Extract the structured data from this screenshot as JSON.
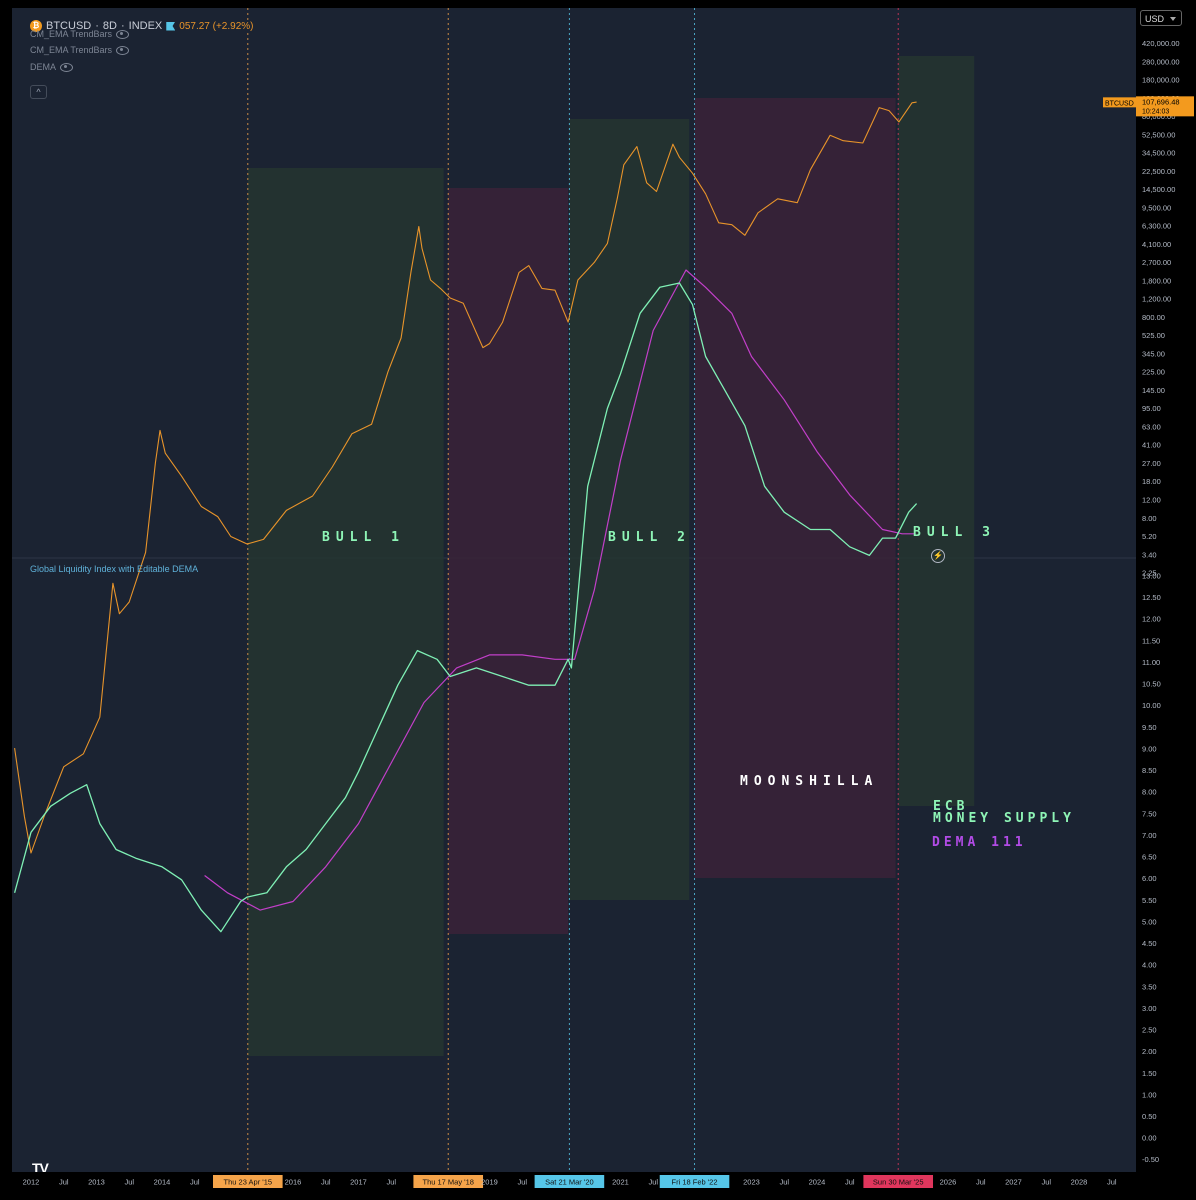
{
  "header": {
    "symbol": "BTCUSD",
    "interval": "8D",
    "exchange": "INDEX",
    "change_text": "057.27 (+2.92%)"
  },
  "indicators": [
    {
      "name": "CM_EMA TrendBars"
    },
    {
      "name": "CM_EMA TrendBars"
    },
    {
      "name": "DEMA"
    }
  ],
  "lower_pane_title": "Global Liquidity Index with Editable DEMA",
  "currency": "USD",
  "price_tag": {
    "symbol": "BTCUSD",
    "price": "107,696.48",
    "countdown": "10:24:03"
  },
  "colors": {
    "background": "#1b2332",
    "btc_line": "#e8942a",
    "liquidity_line": "#7ff0b5",
    "dema_line": "#c23fc9",
    "bull_zone": "#243530",
    "bear_zone": "#3a2238",
    "annotation_green": "#8ef5b6",
    "annotation_purple": "#b24be6"
  },
  "annotations": {
    "bull1": "BULL 1",
    "bull2": "BULL 2",
    "bull3": "BULL 3",
    "moonshilla": "MOONSHILLA",
    "ecb": "ECB",
    "money_supply": "MONEY SUPPLY",
    "dema": "DEMA 111"
  },
  "chart_data": [
    {
      "type": "line",
      "title": "BTCUSD · 8D · INDEX",
      "scale": "log",
      "yticks": [
        "420,000.00",
        "280,000.00",
        "180,000.00",
        "120,000.00",
        "80,000.00",
        "52,500.00",
        "34,500.00",
        "22,500.00",
        "14,500.00",
        "9,500.00",
        "6,300.00",
        "4,100.00",
        "2,700.00",
        "1,800.00",
        "1,200.00",
        "800.00",
        "525.00",
        "345.00",
        "225.00",
        "145.00",
        "95.00",
        "63.00",
        "41.00",
        "27.00",
        "18.00",
        "12.00",
        "8.00",
        "5.20",
        "3.40",
        "2.25"
      ],
      "series": [
        {
          "name": "BTCUSD",
          "x": [
            2011.75,
            2011.9,
            2012.0,
            2012.2,
            2012.5,
            2012.8,
            2013.05,
            2013.25,
            2013.35,
            2013.5,
            2013.75,
            2013.9,
            2013.97,
            2014.05,
            2014.3,
            2014.6,
            2014.85,
            2015.05,
            2015.3,
            2015.55,
            2015.9,
            2016.3,
            2016.6,
            2016.9,
            2017.2,
            2017.45,
            2017.65,
            2017.8,
            2017.92,
            2017.97,
            2018.1,
            2018.25,
            2018.4,
            2018.6,
            2018.9,
            2019.0,
            2019.2,
            2019.45,
            2019.6,
            2019.8,
            2020.0,
            2020.2,
            2020.35,
            2020.6,
            2020.8,
            2020.95,
            2021.05,
            2021.25,
            2021.4,
            2021.55,
            2021.8,
            2021.9,
            2022.1,
            2022.3,
            2022.5,
            2022.7,
            2022.9,
            2023.1,
            2023.4,
            2023.7,
            2023.9,
            2024.2,
            2024.4,
            2024.7,
            2024.95,
            2025.1,
            2025.25,
            2025.45,
            2025.52
          ],
          "values": [
            13,
            5,
            3,
            5,
            10,
            12,
            20,
            130,
            85,
            100,
            200,
            700,
            1100,
            800,
            580,
            380,
            330,
            250,
            225,
            240,
            360,
            440,
            660,
            1050,
            1200,
            2500,
            4000,
            10000,
            19000,
            14000,
            9000,
            8000,
            7000,
            6500,
            3500,
            3700,
            5000,
            10000,
            11000,
            8000,
            7800,
            5000,
            9000,
            11500,
            15000,
            28000,
            45000,
            58000,
            35000,
            31000,
            60000,
            50000,
            40000,
            30000,
            20000,
            19500,
            16800,
            23000,
            28000,
            26500,
            42000,
            68000,
            63000,
            61000,
            100000,
            96000,
            82000,
            107000,
            108000
          ]
        }
      ]
    },
    {
      "type": "line",
      "title": "Global Liquidity Index with Editable DEMA",
      "yticks": [
        "13.00",
        "12.50",
        "12.00",
        "11.50",
        "11.00",
        "10.50",
        "10.00",
        "9.50",
        "9.00",
        "8.50",
        "8.00",
        "7.50",
        "7.00",
        "6.50",
        "6.00",
        "5.50",
        "5.00",
        "4.50",
        "4.00",
        "3.50",
        "3.00",
        "2.50",
        "2.00",
        "1.50",
        "1.00",
        "0.50",
        "0.00",
        "-0.50"
      ],
      "series": [
        {
          "name": "ECB MONEY SUPPLY",
          "x": [
            2011.75,
            2012.0,
            2012.3,
            2012.6,
            2012.85,
            2013.05,
            2013.3,
            2013.6,
            2014.0,
            2014.3,
            2014.6,
            2014.9,
            2015.2,
            2015.3,
            2015.6,
            2015.9,
            2016.2,
            2016.5,
            2016.8,
            2017.0,
            2017.3,
            2017.6,
            2017.9,
            2018.2,
            2018.4,
            2018.8,
            2019.2,
            2019.6,
            2020.0,
            2020.2,
            2020.25,
            2020.5,
            2020.8,
            2021.0,
            2021.3,
            2021.6,
            2021.9,
            2022.1,
            2022.3,
            2022.6,
            2022.9,
            2023.2,
            2023.5,
            2023.9,
            2024.2,
            2024.5,
            2024.8,
            2025.0,
            2025.2,
            2025.4,
            2025.52
          ],
          "values": [
            2.8,
            3.5,
            3.8,
            3.95,
            4.05,
            3.6,
            3.3,
            3.2,
            3.1,
            2.95,
            2.6,
            2.35,
            2.7,
            2.75,
            2.8,
            3.1,
            3.3,
            3.6,
            3.9,
            4.2,
            4.7,
            5.2,
            5.6,
            5.5,
            5.3,
            5.4,
            5.3,
            5.2,
            5.2,
            5.5,
            5.4,
            7.5,
            8.4,
            8.8,
            9.5,
            9.8,
            9.85,
            9.6,
            9.0,
            8.6,
            8.2,
            7.5,
            7.2,
            7.0,
            7.0,
            6.8,
            6.7,
            6.9,
            6.9,
            7.2,
            7.3
          ]
        },
        {
          "name": "DEMA 111",
          "x": [
            2014.65,
            2015.0,
            2015.5,
            2016.0,
            2016.5,
            2017.0,
            2017.5,
            2018.0,
            2018.5,
            2019.0,
            2019.5,
            2020.0,
            2020.3,
            2020.6,
            2021.0,
            2021.5,
            2022.0,
            2022.3,
            2022.7,
            2023.0,
            2023.5,
            2024.0,
            2024.5,
            2025.0,
            2025.3,
            2025.5
          ],
          "values": [
            3.0,
            2.8,
            2.6,
            2.7,
            3.1,
            3.6,
            4.3,
            5.0,
            5.4,
            5.55,
            5.55,
            5.5,
            5.5,
            6.3,
            7.8,
            9.3,
            10.0,
            9.8,
            9.5,
            9.0,
            8.5,
            7.9,
            7.4,
            7.0,
            6.95,
            6.95
          ]
        }
      ]
    }
  ],
  "x_axis": {
    "labels": [
      "2012",
      "Jul",
      "2013",
      "Jul",
      "2014",
      "Jul",
      "Thu 23 Apr '15",
      "2016",
      "Jul",
      "2017",
      "Jul",
      "Thu 17 May '18",
      "2019",
      "Jul",
      "Sat 21 Mar '20",
      "2021",
      "Jul",
      "Fri 18 Feb '22",
      "2023",
      "Jul",
      "2024",
      "Jul",
      "Sun 30 Mar '25",
      "2026",
      "Jul",
      "2027",
      "Jul",
      "2028",
      "Jul"
    ],
    "x": [
      2012.0,
      2012.5,
      2013.0,
      2013.5,
      2014.0,
      2014.5,
      2015.31,
      2016.0,
      2016.5,
      2017.0,
      2017.5,
      2018.37,
      2019.0,
      2019.5,
      2020.22,
      2021.0,
      2021.5,
      2022.13,
      2023.0,
      2023.5,
      2024.0,
      2024.5,
      2025.24,
      2026.0,
      2026.5,
      2027.0,
      2027.5,
      2028.0,
      2028.5
    ],
    "highlights": [
      {
        "x": 2015.31,
        "label": "Thu 23 Apr '15",
        "color": "#f5a44a"
      },
      {
        "x": 2018.37,
        "label": "Thu 17 May '18",
        "color": "#f5a44a"
      },
      {
        "x": 2020.22,
        "label": "Sat 21 Mar '20",
        "color": "#56c6e8"
      },
      {
        "x": 2022.13,
        "label": "Fri 18 Feb '22",
        "color": "#56c6e8"
      },
      {
        "x": 2025.24,
        "label": "Sun 30 Mar '25",
        "color": "#e0365d"
      }
    ]
  },
  "zones": [
    {
      "type": "bull",
      "label": "BULL 1",
      "x0": 2015.31,
      "x1": 2018.3
    },
    {
      "type": "bear",
      "x0": 2018.37,
      "x1": 2020.2
    },
    {
      "type": "bull",
      "label": "BULL 2",
      "x0": 2020.22,
      "x1": 2022.05
    },
    {
      "type": "bear",
      "x0": 2022.13,
      "x1": 2025.2
    },
    {
      "type": "bull",
      "label": "BULL 3",
      "x0": 2025.24,
      "x1": 2026.4
    }
  ]
}
